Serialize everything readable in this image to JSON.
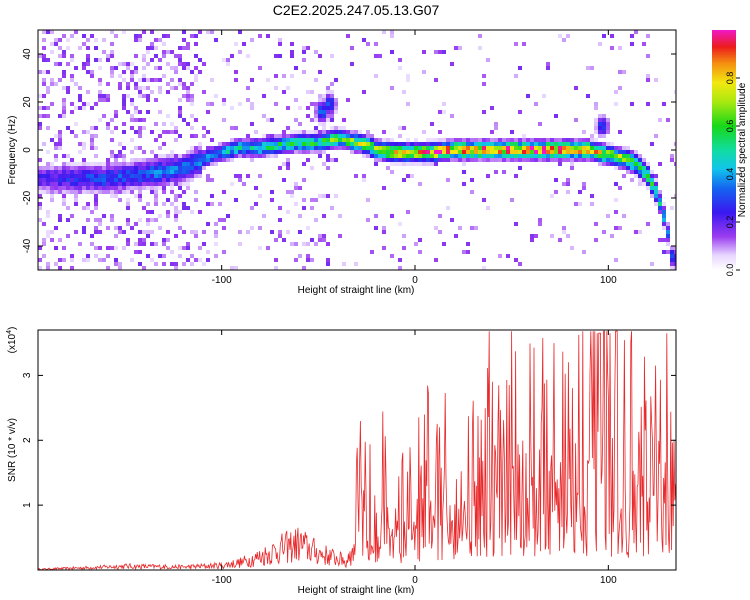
{
  "title": "C2E2.2025.247.05.13.G07",
  "chart_data": [
    {
      "type": "heatmap",
      "xlabel": "Height of straight line (km)",
      "ylabel": "Frequency (Hz)",
      "xlim": [
        -195,
        135
      ],
      "ylim": [
        -50,
        50
      ],
      "xticks": [
        -100,
        0,
        100
      ],
      "xtick_labels": [
        "-100",
        "0",
        "100"
      ],
      "yticks": [
        -40,
        -20,
        0,
        20,
        40
      ],
      "ytick_labels": [
        "-40",
        "-20",
        "0",
        "20",
        "40"
      ],
      "colorbar": {
        "label": "Normalized spectral amplitude",
        "range": [
          0,
          1
        ],
        "ticks": [
          0.0,
          0.2,
          0.4,
          0.6,
          0.8
        ],
        "tick_labels": [
          "0.0",
          "0.2",
          "0.4",
          "0.6",
          "0.8"
        ]
      },
      "ridge": {
        "height_km": [
          -195,
          -180,
          -170,
          -160,
          -150,
          -140,
          -130,
          -120,
          -110,
          -100,
          -90,
          -80,
          -70,
          -60,
          -50,
          -45,
          -40,
          -35,
          -30,
          -25,
          -20,
          -10,
          0,
          10,
          20,
          30,
          40,
          50,
          60,
          70,
          80,
          90,
          95,
          100,
          105,
          110,
          115,
          120,
          125,
          128,
          131,
          133
        ],
        "frequency_hz": [
          -12,
          -12,
          -12,
          -12,
          -11,
          -10,
          -9,
          -8,
          -4,
          -1,
          1,
          1,
          2,
          3,
          3,
          4,
          5,
          4,
          3,
          2,
          0,
          -1,
          -1,
          -1,
          0,
          0,
          0,
          0,
          0,
          0,
          0,
          0,
          -1,
          -2,
          -3,
          -4,
          -6,
          -10,
          -18,
          -25,
          -35,
          -45
        ]
      },
      "ridge_amplitude": [
        0.22,
        0.25,
        0.28,
        0.3,
        0.3,
        0.32,
        0.33,
        0.34,
        0.38,
        0.42,
        0.45,
        0.48,
        0.5,
        0.52,
        0.55,
        0.58,
        0.62,
        0.62,
        0.65,
        0.68,
        0.72,
        0.78,
        0.84,
        0.85,
        0.86,
        0.86,
        0.87,
        0.88,
        0.9,
        0.9,
        0.88,
        0.85,
        0.8,
        0.72,
        0.68,
        0.62,
        0.6,
        0.56,
        0.48,
        0.42,
        0.35,
        0.3
      ],
      "secondary_blobs": [
        {
          "height_km": -48,
          "frequency_hz": 16,
          "amplitude": 0.38
        },
        {
          "height_km": -44,
          "frequency_hz": 19,
          "amplitude": 0.35
        },
        {
          "height_km": 97,
          "frequency_hz": 10,
          "amplitude": 0.32
        }
      ]
    },
    {
      "type": "line",
      "xlabel": "Height of straight line (km)",
      "ylabel": "SNR (10 * v/v)",
      "scale_label": "(x10",
      "scale_exp": "4",
      "scale_close": ")",
      "xlim": [
        -195,
        135
      ],
      "ylim": [
        0,
        3.7
      ],
      "xticks": [
        -100,
        0,
        100
      ],
      "xtick_labels": [
        "-100",
        "0",
        "100"
      ],
      "yticks": [
        1,
        2,
        3
      ],
      "ytick_labels": [
        "1",
        "2",
        "3"
      ],
      "color": "#e8282a",
      "envelope": {
        "height_km": [
          -195,
          -170,
          -150,
          -120,
          -100,
          -90,
          -80,
          -70,
          -60,
          -50,
          -40,
          -35,
          -30,
          -20,
          -10,
          0,
          10,
          20,
          30,
          40,
          50,
          60,
          70,
          80,
          90,
          95,
          100,
          110,
          120,
          130,
          135
        ],
        "snr": [
          0.02,
          0.06,
          0.1,
          0.08,
          0.12,
          0.2,
          0.35,
          0.55,
          0.7,
          0.45,
          0.3,
          0.25,
          1.1,
          1.2,
          1.0,
          0.95,
          1.4,
          1.6,
          1.75,
          1.9,
          1.95,
          2.0,
          2.05,
          2.1,
          2.15,
          2.2,
          2.05,
          1.9,
          1.75,
          1.6,
          1.5
        ]
      }
    }
  ]
}
